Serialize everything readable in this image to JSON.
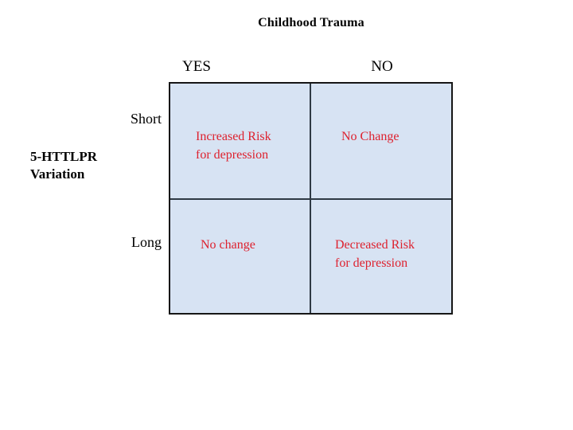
{
  "diagram": {
    "title": "Childhood Trauma",
    "column_headers": {
      "yes": "YES",
      "no": "NO"
    },
    "row_labels": {
      "short": "Short",
      "long": "Long"
    },
    "axis_label": {
      "line1": "5-HTTLPR",
      "line2": "Variation"
    },
    "cells": {
      "top_left": [
        "Increased Risk",
        "for depression"
      ],
      "top_right": [
        "No Change"
      ],
      "bottom_left": [
        "No change"
      ],
      "bottom_right": [
        "Decreased Risk",
        "for depression"
      ]
    }
  },
  "colors": {
    "cell_bg": "#d7e3f3",
    "cell_text": "#de212e",
    "border": "#161616"
  }
}
